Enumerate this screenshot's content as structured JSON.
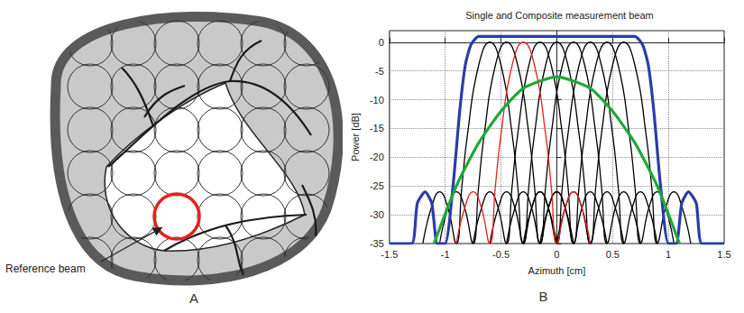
{
  "diagram": {
    "panel_label": "A",
    "annotation": "Reference beam"
  },
  "chart_data": {
    "type": "line",
    "panel_label": "B",
    "title": "Single and Composite measurement beam",
    "xlabel": "Azimuth [cm]",
    "ylabel": "Power [dB]",
    "xlim": [
      -1.5,
      1.5
    ],
    "xticks": [
      -1.5,
      -1,
      -0.5,
      0,
      0.5,
      1,
      1.5
    ],
    "ylim": [
      -35,
      2
    ],
    "yticks": [
      0,
      -5,
      -10,
      -15,
      -20,
      -25,
      -30,
      -35
    ],
    "grid": true,
    "series": [
      {
        "color": "#000000",
        "x": [
          -1.2,
          -1.12,
          -1.05,
          -0.98,
          -0.9,
          -0.85,
          -0.8,
          -0.7,
          -0.6,
          -0.5,
          -0.4,
          -0.35,
          -0.3,
          -0.22,
          -0.15,
          -0.08,
          0
        ],
        "values": [
          -35,
          -28.5,
          -26,
          -28.5,
          -35,
          -25,
          -16,
          -4,
          0,
          -4,
          -16,
          -25,
          -35,
          -28.5,
          -26,
          -28.5,
          -35
        ]
      },
      {
        "color": "#000000",
        "x": [
          -1.05,
          -0.97,
          -0.9,
          -0.83,
          -0.75,
          -0.7,
          -0.65,
          -0.55,
          -0.45,
          -0.35,
          -0.25,
          -0.2,
          -0.15,
          -0.07,
          0,
          0.07,
          0.15
        ],
        "values": [
          -35,
          -28.5,
          -26,
          -28.5,
          -35,
          -25,
          -16,
          -4,
          0,
          -4,
          -16,
          -25,
          -35,
          -28.5,
          -26,
          -28.5,
          -35
        ]
      },
      {
        "color": "#000000",
        "x": [
          -0.75,
          -0.67,
          -0.6,
          -0.53,
          -0.45,
          -0.4,
          -0.35,
          -0.25,
          -0.15,
          -0.05,
          0.05,
          0.1,
          0.15,
          0.23,
          0.3,
          0.37,
          0.45
        ],
        "values": [
          -35,
          -28.5,
          -26,
          -28.5,
          -35,
          -25,
          -16,
          -4,
          0,
          -4,
          -16,
          -25,
          -35,
          -28.5,
          -26,
          -28.5,
          -35
        ]
      },
      {
        "color": "#000000",
        "x": [
          -0.6,
          -0.52,
          -0.45,
          -0.38,
          -0.3,
          -0.25,
          -0.2,
          -0.1,
          0,
          0.1,
          0.2,
          0.25,
          0.3,
          0.38,
          0.45,
          0.52,
          0.6
        ],
        "values": [
          -35,
          -28.5,
          -26,
          -28.5,
          -35,
          -25,
          -16,
          -4,
          0,
          -4,
          -16,
          -25,
          -35,
          -28.5,
          -26,
          -28.5,
          -35
        ]
      },
      {
        "color": "#000000",
        "x": [
          -0.45,
          -0.37,
          -0.3,
          -0.23,
          -0.15,
          -0.1,
          -0.05,
          0.05,
          0.15,
          0.25,
          0.35,
          0.4,
          0.45,
          0.53,
          0.6,
          0.67,
          0.75
        ],
        "values": [
          -35,
          -28.5,
          -26,
          -28.5,
          -35,
          -25,
          -16,
          -4,
          0,
          -4,
          -16,
          -25,
          -35,
          -28.5,
          -26,
          -28.5,
          -35
        ]
      },
      {
        "color": "#000000",
        "x": [
          -0.3,
          -0.22,
          -0.15,
          -0.08,
          0,
          0.05,
          0.1,
          0.2,
          0.3,
          0.4,
          0.5,
          0.55,
          0.6,
          0.68,
          0.75,
          0.82,
          0.9
        ],
        "values": [
          -35,
          -28.5,
          -26,
          -28.5,
          -35,
          -25,
          -16,
          -4,
          0,
          -4,
          -16,
          -25,
          -35,
          -28.5,
          -26,
          -28.5,
          -35
        ]
      },
      {
        "color": "#000000",
        "x": [
          -0.15,
          -0.07,
          0,
          0.07,
          0.15,
          0.2,
          0.25,
          0.35,
          0.45,
          0.55,
          0.65,
          0.7,
          0.75,
          0.83,
          0.9,
          0.97,
          1.05
        ],
        "values": [
          -35,
          -28.5,
          -26,
          -28.5,
          -35,
          -25,
          -16,
          -4,
          0,
          -4,
          -16,
          -25,
          -35,
          -28.5,
          -26,
          -28.5,
          -35
        ]
      },
      {
        "color": "#000000",
        "x": [
          0,
          0.08,
          0.15,
          0.22,
          0.3,
          0.35,
          0.4,
          0.5,
          0.6,
          0.7,
          0.8,
          0.85,
          0.9,
          0.98,
          1.05,
          1.12,
          1.2
        ],
        "values": [
          -35,
          -28.5,
          -26,
          -28.5,
          -35,
          -25,
          -16,
          -4,
          0,
          -4,
          -16,
          -25,
          -35,
          -28.5,
          -26,
          -28.5,
          -35
        ]
      },
      {
        "color": "#e8201c",
        "x": [
          -0.9,
          -0.82,
          -0.75,
          -0.68,
          -0.6,
          -0.55,
          -0.5,
          -0.4,
          -0.3,
          -0.2,
          -0.1,
          -0.05,
          0,
          0.08,
          0.15,
          0.22,
          0.3
        ],
        "values": [
          -35,
          -28.5,
          -26,
          -28.5,
          -35,
          -25,
          -16,
          -4,
          0,
          -4,
          -16,
          -25,
          -35,
          -28.5,
          -26,
          -28.5,
          -35
        ]
      },
      {
        "color": "#2a3ca6",
        "x": [
          -1.5,
          -1.3,
          -1.25,
          -1.18,
          -1.12,
          -1.07,
          -1.0,
          -0.93,
          -0.87,
          -0.82,
          -0.77,
          -0.7,
          -0.35,
          0,
          0.35,
          0.7,
          0.77,
          0.82,
          0.87,
          0.93,
          1.0,
          1.07,
          1.12,
          1.18,
          1.25,
          1.3,
          1.5
        ],
        "values": [
          -35,
          -35,
          -28,
          -26,
          -28,
          -35,
          -35,
          -25,
          -12,
          -4,
          -0.5,
          1,
          1,
          1,
          1,
          1,
          -0.5,
          -4,
          -12,
          -25,
          -35,
          -35,
          -28,
          -26,
          -28,
          -35,
          -35
        ]
      },
      {
        "color": "#1ea83a",
        "x": [
          -1.1,
          -0.9,
          -0.7,
          -0.5,
          -0.3,
          0,
          0.3,
          0.5,
          0.7,
          0.9,
          1.1
        ],
        "values": [
          -35,
          -25,
          -17.5,
          -12,
          -8,
          -6,
          -8,
          -12,
          -17.5,
          -25,
          -35
        ]
      }
    ]
  }
}
